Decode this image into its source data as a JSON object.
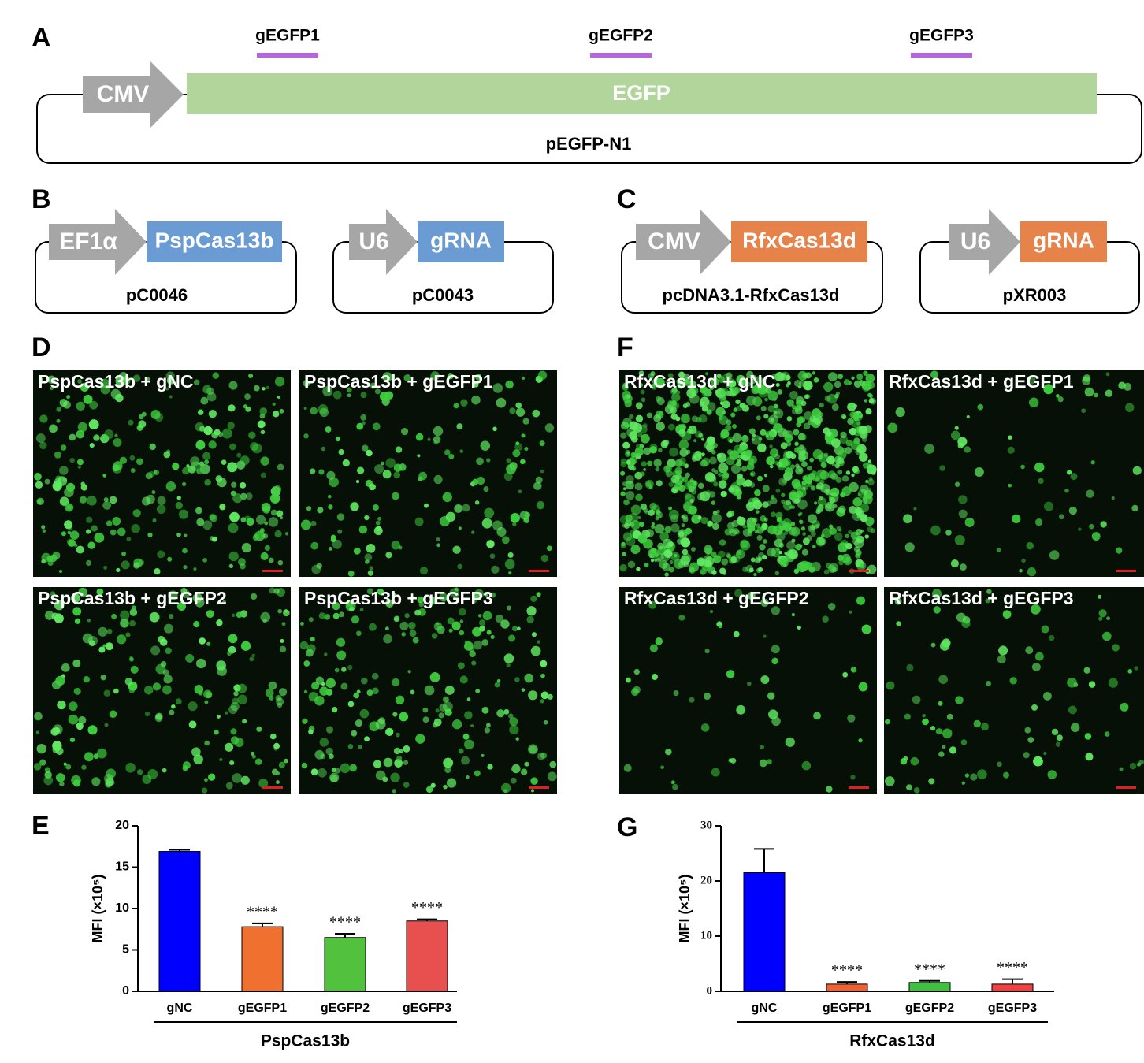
{
  "panel_letters": [
    "A",
    "B",
    "C",
    "D",
    "E",
    "F",
    "G"
  ],
  "panel_a": {
    "guides": [
      "gEGFP1",
      "gEGFP2",
      "gEGFP3"
    ],
    "promoter": "CMV",
    "gene": "EGFP",
    "plasmid": "pEGFP-N1"
  },
  "panel_b": {
    "plasmids": [
      {
        "promoter": "EF1α",
        "gene": "PspCas13b",
        "name": "pC0046"
      },
      {
        "promoter": "U6",
        "gene": "gRNA",
        "name": "pC0043"
      }
    ]
  },
  "panel_c": {
    "plasmids": [
      {
        "promoter": "CMV",
        "gene": "RfxCas13d",
        "name": "pcDNA3.1-RfxCas13d"
      },
      {
        "promoter": "U6",
        "gene": "gRNA",
        "name": "pXR003"
      }
    ]
  },
  "panel_d": {
    "images": [
      "PspCas13b + gNC",
      "PspCas13b + gEGFP1",
      "PspCas13b + gEGFP2",
      "PspCas13b + gEGFP3"
    ]
  },
  "panel_f": {
    "images": [
      "RfxCas13d + gNC",
      "RfxCas13d + gEGFP1",
      "RfxCas13d + gEGFP2",
      "RfxCas13d + gEGFP3"
    ]
  },
  "chart_data": [
    {
      "type": "bar",
      "ylabel": "MFI (×10⁵)",
      "group_label": "PspCas13b",
      "categories": [
        "gNC",
        "gEGFP1",
        "gEGFP2",
        "gEGFP3"
      ],
      "values": [
        16.9,
        7.8,
        6.5,
        8.5
      ],
      "errors": [
        0.2,
        0.4,
        0.45,
        0.2
      ],
      "colors": [
        "#0000ff",
        "#f07030",
        "#52c23e",
        "#e85050"
      ],
      "significance": [
        null,
        "****",
        "****",
        "****"
      ],
      "ylim": [
        0,
        20
      ],
      "yticks": [
        0,
        5,
        10,
        15,
        20
      ]
    },
    {
      "type": "bar",
      "ylabel": "MFI (×10⁵)",
      "group_label": "RfxCas13d",
      "categories": [
        "gNC",
        "gEGFP1",
        "gEGFP2",
        "gEGFP3"
      ],
      "values": [
        21.5,
        1.3,
        1.6,
        1.3
      ],
      "errors": [
        4.3,
        0.4,
        0.3,
        0.9
      ],
      "colors": [
        "#0000ff",
        "#f06030",
        "#40c040",
        "#f04040"
      ],
      "significance": [
        null,
        "****",
        "****",
        "****"
      ],
      "ylim": [
        0,
        30
      ],
      "yticks": [
        0,
        10,
        20,
        30
      ]
    }
  ]
}
